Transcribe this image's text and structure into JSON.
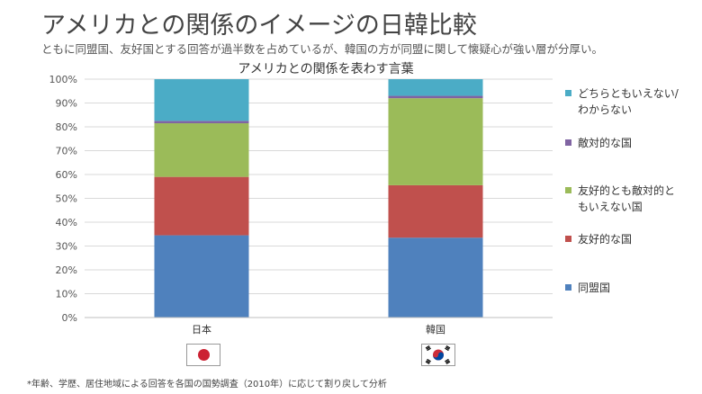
{
  "page": {
    "title": "アメリカとの関係のイメージの日韓比較",
    "subtitle": "ともに同盟国、友好国とする回答が過半数を占めているが、韓国の方が同盟に関して懐疑心が強い層が分厚い。",
    "footnote": "*年齢、学歴、居住地域による回答を各国の国勢調査（2010年）に応じて割り戻して分析"
  },
  "chart_data": {
    "type": "bar",
    "stacked": true,
    "title": "アメリカとの関係を表わす言葉",
    "categories": [
      "日本",
      "韓国"
    ],
    "series": [
      {
        "name": "同盟国",
        "values": [
          34.5,
          33.5
        ],
        "color": "#4f81bd"
      },
      {
        "name": "友好的な国",
        "values": [
          24.5,
          22.0
        ],
        "color": "#c0504d"
      },
      {
        "name": "友好的とも敵対的ともいえない国",
        "values": [
          22.5,
          36.5
        ],
        "color": "#9bbb59"
      },
      {
        "name": "敵対的な国",
        "values": [
          1.0,
          1.0
        ],
        "color": "#8064a2"
      },
      {
        "name": "どちらともいえない/わからない",
        "values": [
          17.5,
          7.0
        ],
        "color": "#4bacc6"
      }
    ],
    "y_ticks": [
      "0%",
      "10%",
      "20%",
      "30%",
      "40%",
      "50%",
      "60%",
      "70%",
      "80%",
      "90%",
      "100%"
    ],
    "ylim": [
      0,
      100
    ],
    "grid": true,
    "legend_position": "right"
  },
  "flags": [
    {
      "country": "日本",
      "icon": "japan-flag-icon"
    },
    {
      "country": "韓国",
      "icon": "korea-flag-icon"
    }
  ]
}
